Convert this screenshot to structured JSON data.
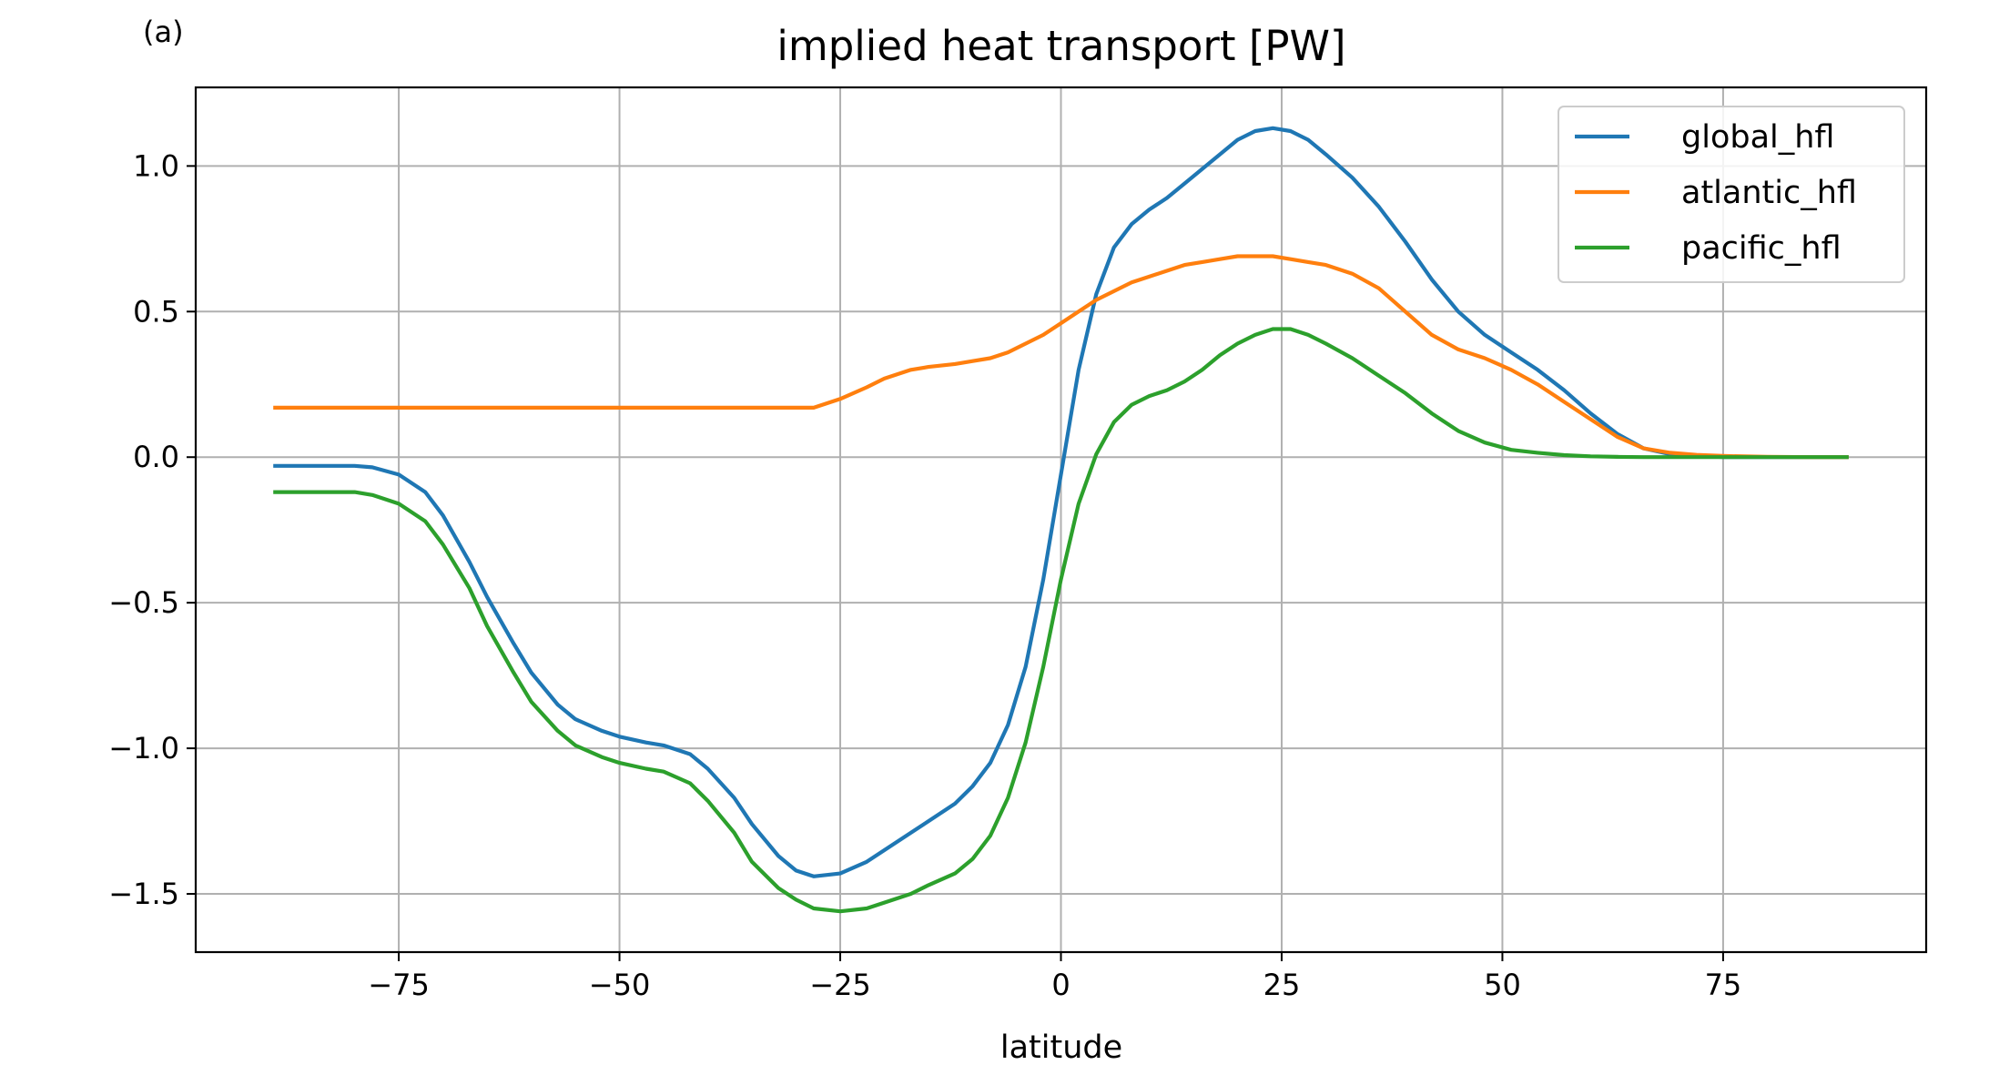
{
  "panel_label": "(a)",
  "chart_data": {
    "type": "line",
    "title": "implied heat transport [PW]",
    "xlabel": "latitude",
    "ylabel": "",
    "xlim": [
      -98,
      98
    ],
    "ylim": [
      -1.7,
      1.27
    ],
    "xticks": [
      -75,
      -50,
      -25,
      0,
      25,
      50,
      75
    ],
    "xtick_labels": [
      "−75",
      "−50",
      "−25",
      "0",
      "25",
      "50",
      "75"
    ],
    "yticks": [
      -1.5,
      -1.0,
      -0.5,
      0.0,
      0.5,
      1.0
    ],
    "ytick_labels": [
      "−1.5",
      "−1.0",
      "−0.5",
      "0.0",
      "0.5",
      "1.0"
    ],
    "grid": true,
    "legend_position": "top-right",
    "x": [
      -89,
      -85,
      -80,
      -78,
      -75,
      -72,
      -70,
      -67,
      -65,
      -62,
      -60,
      -57,
      -55,
      -52,
      -50,
      -47,
      -45,
      -42,
      -40,
      -37,
      -35,
      -32,
      -30,
      -28,
      -25,
      -22,
      -20,
      -17,
      -15,
      -12,
      -10,
      -8,
      -6,
      -4,
      -2,
      0,
      2,
      4,
      6,
      8,
      10,
      12,
      14,
      16,
      18,
      20,
      22,
      24,
      26,
      28,
      30,
      33,
      36,
      39,
      42,
      45,
      48,
      51,
      54,
      57,
      60,
      63,
      66,
      69,
      72,
      75,
      80,
      85,
      89
    ],
    "series": [
      {
        "name": "global_hfl",
        "color": "#1f77b4",
        "values": [
          -0.03,
          -0.03,
          -0.03,
          -0.035,
          -0.06,
          -0.12,
          -0.2,
          -0.36,
          -0.48,
          -0.64,
          -0.74,
          -0.85,
          -0.9,
          -0.94,
          -0.96,
          -0.98,
          -0.99,
          -1.02,
          -1.07,
          -1.17,
          -1.26,
          -1.37,
          -1.42,
          -1.44,
          -1.43,
          -1.39,
          -1.35,
          -1.29,
          -1.25,
          -1.19,
          -1.13,
          -1.05,
          -0.92,
          -0.72,
          -0.42,
          -0.06,
          0.3,
          0.56,
          0.72,
          0.8,
          0.85,
          0.89,
          0.94,
          0.99,
          1.04,
          1.09,
          1.12,
          1.13,
          1.12,
          1.09,
          1.04,
          0.96,
          0.86,
          0.74,
          0.61,
          0.5,
          0.42,
          0.36,
          0.3,
          0.23,
          0.15,
          0.08,
          0.03,
          0.01,
          0.005,
          0.0,
          0.0,
          0.0,
          0.0
        ]
      },
      {
        "name": "atlantic_hfl",
        "color": "#ff7f0e",
        "values": [
          0.17,
          0.17,
          0.17,
          0.17,
          0.17,
          0.17,
          0.17,
          0.17,
          0.17,
          0.17,
          0.17,
          0.17,
          0.17,
          0.17,
          0.17,
          0.17,
          0.17,
          0.17,
          0.17,
          0.17,
          0.17,
          0.17,
          0.17,
          0.17,
          0.2,
          0.24,
          0.27,
          0.3,
          0.31,
          0.32,
          0.33,
          0.34,
          0.36,
          0.39,
          0.42,
          0.46,
          0.5,
          0.54,
          0.57,
          0.6,
          0.62,
          0.64,
          0.66,
          0.67,
          0.68,
          0.69,
          0.69,
          0.69,
          0.68,
          0.67,
          0.66,
          0.63,
          0.58,
          0.5,
          0.42,
          0.37,
          0.34,
          0.3,
          0.25,
          0.19,
          0.13,
          0.07,
          0.03,
          0.015,
          0.008,
          0.004,
          0.001,
          0.0,
          0.0
        ]
      },
      {
        "name": "pacific_hfl",
        "color": "#2ca02c",
        "values": [
          -0.12,
          -0.12,
          -0.12,
          -0.13,
          -0.16,
          -0.22,
          -0.3,
          -0.45,
          -0.58,
          -0.74,
          -0.84,
          -0.94,
          -0.99,
          -1.03,
          -1.05,
          -1.07,
          -1.08,
          -1.12,
          -1.18,
          -1.29,
          -1.39,
          -1.48,
          -1.52,
          -1.55,
          -1.56,
          -1.55,
          -1.53,
          -1.5,
          -1.47,
          -1.43,
          -1.38,
          -1.3,
          -1.17,
          -0.98,
          -0.72,
          -0.42,
          -0.16,
          0.01,
          0.12,
          0.18,
          0.21,
          0.23,
          0.26,
          0.3,
          0.35,
          0.39,
          0.42,
          0.44,
          0.44,
          0.42,
          0.39,
          0.34,
          0.28,
          0.22,
          0.15,
          0.09,
          0.05,
          0.025,
          0.015,
          0.007,
          0.003,
          0.001,
          0.0,
          0.0,
          0.0,
          0.0,
          0.0,
          0.0,
          0.0
        ]
      }
    ]
  }
}
